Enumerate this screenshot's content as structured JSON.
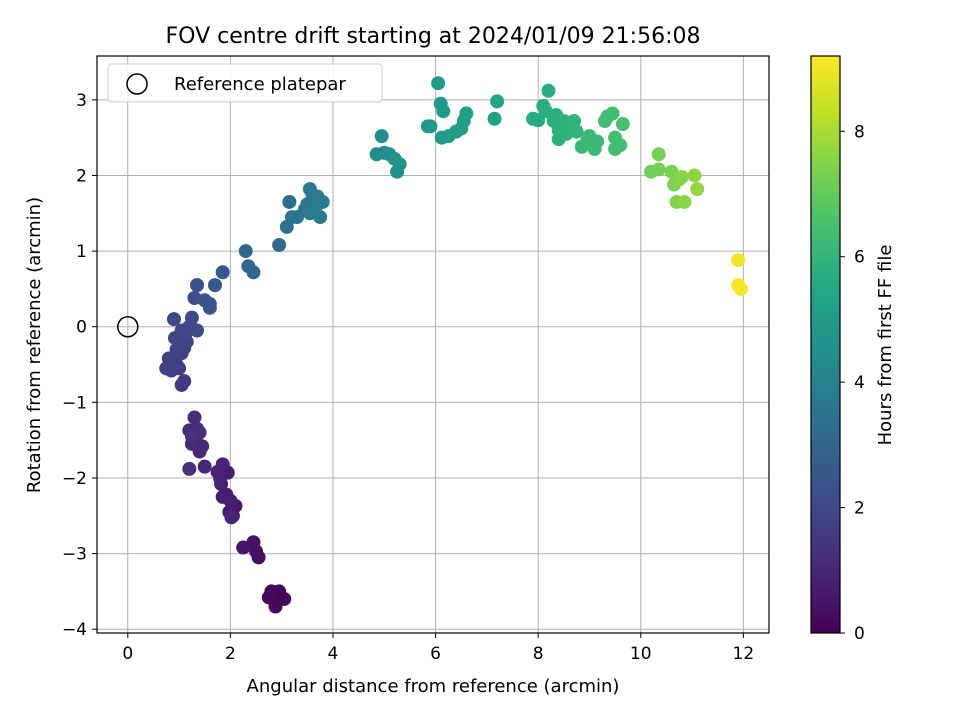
{
  "chart_data": {
    "type": "scatter",
    "title": "FOV centre drift starting at 2024/01/09 21:56:08",
    "xlabel": "Angular distance from reference (arcmin)",
    "ylabel": "Rotation from reference (arcmin)",
    "xlim": [
      -0.6,
      12.5
    ],
    "ylim": [
      -4.05,
      3.58
    ],
    "xticks": [
      0,
      2,
      4,
      6,
      8,
      10,
      12
    ],
    "yticks": [
      -4,
      -3,
      -2,
      -1,
      0,
      1,
      2,
      3
    ],
    "grid": true,
    "legend": {
      "placement": "upper-left",
      "entries": [
        "Reference platepar"
      ]
    },
    "reference_point": {
      "x": 0,
      "y": 0
    },
    "colorbar": {
      "label": "Hours from first FF file",
      "colormap": "viridis",
      "range": [
        0,
        9.2
      ],
      "ticks": [
        0,
        2,
        4,
        6,
        8
      ]
    },
    "points": [
      {
        "x": 2.85,
        "y": -3.55,
        "h": 0.05
      },
      {
        "x": 2.9,
        "y": -3.65,
        "h": 0.08
      },
      {
        "x": 2.95,
        "y": -3.5,
        "h": 0.1
      },
      {
        "x": 3.05,
        "y": -3.6,
        "h": 0.12
      },
      {
        "x": 2.8,
        "y": -3.5,
        "h": 0.15
      },
      {
        "x": 2.88,
        "y": -3.7,
        "h": 0.18
      },
      {
        "x": 2.75,
        "y": -3.58,
        "h": 0.2
      },
      {
        "x": 2.55,
        "y": -3.05,
        "h": 0.35
      },
      {
        "x": 2.5,
        "y": -2.97,
        "h": 0.4
      },
      {
        "x": 2.45,
        "y": -2.85,
        "h": 0.45
      },
      {
        "x": 2.25,
        "y": -2.92,
        "h": 0.5
      },
      {
        "x": 2.1,
        "y": -2.37,
        "h": 0.6
      },
      {
        "x": 2.05,
        "y": -2.5,
        "h": 0.65
      },
      {
        "x": 2.0,
        "y": -2.3,
        "h": 0.7
      },
      {
        "x": 1.98,
        "y": -2.45,
        "h": 0.72
      },
      {
        "x": 1.92,
        "y": -2.22,
        "h": 0.75
      },
      {
        "x": 1.85,
        "y": -2.25,
        "h": 0.78
      },
      {
        "x": 1.95,
        "y": -1.93,
        "h": 0.8
      },
      {
        "x": 1.82,
        "y": -2.08,
        "h": 0.83
      },
      {
        "x": 1.75,
        "y": -1.92,
        "h": 0.86
      },
      {
        "x": 1.85,
        "y": -1.82,
        "h": 0.88
      },
      {
        "x": 1.8,
        "y": -2.0,
        "h": 0.9
      },
      {
        "x": 2.02,
        "y": -2.52,
        "h": 0.95
      },
      {
        "x": 1.5,
        "y": -1.85,
        "h": 1.0
      },
      {
        "x": 1.45,
        "y": -1.58,
        "h": 1.05
      },
      {
        "x": 1.4,
        "y": -1.65,
        "h": 1.08
      },
      {
        "x": 1.35,
        "y": -1.55,
        "h": 1.1
      },
      {
        "x": 1.3,
        "y": -1.5,
        "h": 1.12
      },
      {
        "x": 1.25,
        "y": -1.55,
        "h": 1.15
      },
      {
        "x": 1.4,
        "y": -1.4,
        "h": 1.18
      },
      {
        "x": 1.35,
        "y": -1.35,
        "h": 1.2
      },
      {
        "x": 1.3,
        "y": -1.2,
        "h": 1.22
      },
      {
        "x": 1.2,
        "y": -1.37,
        "h": 1.25
      },
      {
        "x": 1.25,
        "y": -1.45,
        "h": 1.28
      },
      {
        "x": 1.2,
        "y": -1.88,
        "h": 1.3
      },
      {
        "x": 1.1,
        "y": -0.72,
        "h": 1.5
      },
      {
        "x": 1.05,
        "y": -0.77,
        "h": 1.55
      },
      {
        "x": 1.0,
        "y": -0.55,
        "h": 1.6
      },
      {
        "x": 0.95,
        "y": -0.5,
        "h": 1.62
      },
      {
        "x": 0.9,
        "y": -0.45,
        "h": 1.65
      },
      {
        "x": 0.85,
        "y": -0.58,
        "h": 1.68
      },
      {
        "x": 0.8,
        "y": -0.42,
        "h": 1.7
      },
      {
        "x": 0.75,
        "y": -0.55,
        "h": 1.72
      },
      {
        "x": 1.05,
        "y": -0.35,
        "h": 1.75
      },
      {
        "x": 1.1,
        "y": -0.28,
        "h": 1.78
      },
      {
        "x": 1.0,
        "y": -0.22,
        "h": 1.8
      },
      {
        "x": 0.95,
        "y": -0.3,
        "h": 1.82
      },
      {
        "x": 0.92,
        "y": -0.15,
        "h": 1.85
      },
      {
        "x": 1.15,
        "y": -0.2,
        "h": 1.88
      },
      {
        "x": 1.12,
        "y": -0.1,
        "h": 1.9
      },
      {
        "x": 1.05,
        "y": -0.05,
        "h": 1.92
      },
      {
        "x": 0.9,
        "y": 0.1,
        "h": 1.95
      },
      {
        "x": 1.2,
        "y": 0.0,
        "h": 1.98
      },
      {
        "x": 1.25,
        "y": -0.02,
        "h": 2.0
      },
      {
        "x": 1.35,
        "y": -0.05,
        "h": 2.02
      },
      {
        "x": 1.25,
        "y": 0.12,
        "h": 2.05
      },
      {
        "x": 1.3,
        "y": 0.38,
        "h": 2.2
      },
      {
        "x": 1.35,
        "y": 0.55,
        "h": 2.25
      },
      {
        "x": 1.5,
        "y": 0.35,
        "h": 2.3
      },
      {
        "x": 1.6,
        "y": 0.3,
        "h": 2.35
      },
      {
        "x": 1.6,
        "y": 0.25,
        "h": 2.4
      },
      {
        "x": 1.7,
        "y": 0.55,
        "h": 2.5
      },
      {
        "x": 1.85,
        "y": 0.72,
        "h": 2.6
      },
      {
        "x": 2.3,
        "y": 1.0,
        "h": 3.0
      },
      {
        "x": 2.35,
        "y": 0.8,
        "h": 3.05
      },
      {
        "x": 2.45,
        "y": 0.72,
        "h": 3.1
      },
      {
        "x": 2.95,
        "y": 1.08,
        "h": 3.2
      },
      {
        "x": 3.15,
        "y": 1.65,
        "h": 3.35
      },
      {
        "x": 3.1,
        "y": 1.32,
        "h": 3.4
      },
      {
        "x": 3.2,
        "y": 1.45,
        "h": 3.45
      },
      {
        "x": 3.3,
        "y": 1.45,
        "h": 3.5
      },
      {
        "x": 3.45,
        "y": 1.55,
        "h": 3.55
      },
      {
        "x": 3.5,
        "y": 1.62,
        "h": 3.6
      },
      {
        "x": 3.55,
        "y": 1.82,
        "h": 3.65
      },
      {
        "x": 3.6,
        "y": 1.75,
        "h": 3.68
      },
      {
        "x": 3.7,
        "y": 1.72,
        "h": 3.7
      },
      {
        "x": 3.55,
        "y": 1.5,
        "h": 3.72
      },
      {
        "x": 3.65,
        "y": 1.55,
        "h": 3.75
      },
      {
        "x": 3.75,
        "y": 1.45,
        "h": 3.78
      },
      {
        "x": 3.8,
        "y": 1.65,
        "h": 3.8
      },
      {
        "x": 4.85,
        "y": 2.28,
        "h": 4.4
      },
      {
        "x": 5.0,
        "y": 2.3,
        "h": 4.45
      },
      {
        "x": 4.95,
        "y": 2.52,
        "h": 4.5
      },
      {
        "x": 5.1,
        "y": 2.28,
        "h": 4.55
      },
      {
        "x": 5.2,
        "y": 2.22,
        "h": 4.6
      },
      {
        "x": 5.3,
        "y": 2.15,
        "h": 4.62
      },
      {
        "x": 5.25,
        "y": 2.05,
        "h": 4.65
      },
      {
        "x": 5.85,
        "y": 2.65,
        "h": 4.9
      },
      {
        "x": 5.9,
        "y": 2.65,
        "h": 4.92
      },
      {
        "x": 6.05,
        "y": 3.22,
        "h": 4.95
      },
      {
        "x": 6.1,
        "y": 2.95,
        "h": 4.98
      },
      {
        "x": 6.15,
        "y": 2.85,
        "h": 5.0
      },
      {
        "x": 6.12,
        "y": 2.5,
        "h": 5.02
      },
      {
        "x": 6.25,
        "y": 2.52,
        "h": 5.05
      },
      {
        "x": 6.4,
        "y": 2.58,
        "h": 5.08
      },
      {
        "x": 6.5,
        "y": 2.62,
        "h": 5.1
      },
      {
        "x": 6.55,
        "y": 2.72,
        "h": 5.12
      },
      {
        "x": 6.6,
        "y": 2.82,
        "h": 5.15
      },
      {
        "x": 7.15,
        "y": 2.75,
        "h": 5.3
      },
      {
        "x": 7.2,
        "y": 2.98,
        "h": 5.35
      },
      {
        "x": 7.9,
        "y": 2.75,
        "h": 5.6
      },
      {
        "x": 8.0,
        "y": 2.73,
        "h": 5.65
      },
      {
        "x": 8.1,
        "y": 2.92,
        "h": 5.7
      },
      {
        "x": 8.2,
        "y": 3.12,
        "h": 5.72
      },
      {
        "x": 8.15,
        "y": 2.85,
        "h": 5.75
      },
      {
        "x": 8.3,
        "y": 2.72,
        "h": 5.78
      },
      {
        "x": 8.35,
        "y": 2.8,
        "h": 5.8
      },
      {
        "x": 8.4,
        "y": 2.6,
        "h": 5.82
      },
      {
        "x": 8.4,
        "y": 2.48,
        "h": 5.85
      },
      {
        "x": 8.5,
        "y": 2.72,
        "h": 5.88
      },
      {
        "x": 8.55,
        "y": 2.55,
        "h": 5.9
      },
      {
        "x": 8.6,
        "y": 2.65,
        "h": 5.92
      },
      {
        "x": 8.7,
        "y": 2.72,
        "h": 5.95
      },
      {
        "x": 8.75,
        "y": 2.58,
        "h": 5.98
      },
      {
        "x": 8.85,
        "y": 2.38,
        "h": 6.1
      },
      {
        "x": 8.95,
        "y": 2.45,
        "h": 6.15
      },
      {
        "x": 9.0,
        "y": 2.52,
        "h": 6.18
      },
      {
        "x": 9.1,
        "y": 2.35,
        "h": 6.2
      },
      {
        "x": 9.15,
        "y": 2.45,
        "h": 6.22
      },
      {
        "x": 9.3,
        "y": 2.72,
        "h": 6.3
      },
      {
        "x": 9.35,
        "y": 2.78,
        "h": 6.32
      },
      {
        "x": 9.45,
        "y": 2.82,
        "h": 6.35
      },
      {
        "x": 9.5,
        "y": 2.5,
        "h": 6.38
      },
      {
        "x": 9.5,
        "y": 2.35,
        "h": 6.4
      },
      {
        "x": 9.6,
        "y": 2.4,
        "h": 6.42
      },
      {
        "x": 9.65,
        "y": 2.68,
        "h": 6.45
      },
      {
        "x": 10.2,
        "y": 2.05,
        "h": 7.2
      },
      {
        "x": 10.35,
        "y": 2.08,
        "h": 7.25
      },
      {
        "x": 10.35,
        "y": 2.28,
        "h": 7.3
      },
      {
        "x": 10.6,
        "y": 2.05,
        "h": 7.35
      },
      {
        "x": 10.65,
        "y": 1.88,
        "h": 7.4
      },
      {
        "x": 10.7,
        "y": 1.65,
        "h": 7.45
      },
      {
        "x": 10.75,
        "y": 1.95,
        "h": 7.5
      },
      {
        "x": 10.8,
        "y": 1.98,
        "h": 7.55
      },
      {
        "x": 10.85,
        "y": 1.65,
        "h": 7.6
      },
      {
        "x": 11.05,
        "y": 2.0,
        "h": 7.65
      },
      {
        "x": 11.1,
        "y": 1.82,
        "h": 7.7
      },
      {
        "x": 11.9,
        "y": 0.88,
        "h": 9.0
      },
      {
        "x": 11.9,
        "y": 0.55,
        "h": 9.05
      },
      {
        "x": 11.95,
        "y": 0.5,
        "h": 9.1
      }
    ]
  }
}
